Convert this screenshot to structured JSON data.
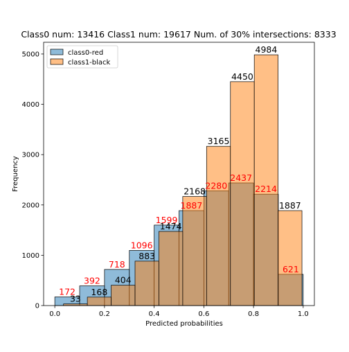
{
  "chart_data": {
    "type": "histogram",
    "title": "Class0 num: 13416 Class1 num: 19617 Num. of 30% intersections: 8333",
    "xlabel": "Predicted probabilities",
    "ylabel": "Frequency",
    "xlim": [
      -0.045,
      1.045
    ],
    "ylim": [
      0,
      5233
    ],
    "xticks": [
      "0.0",
      "0.2",
      "0.4",
      "0.6",
      "0.8",
      "1.0"
    ],
    "xtick_values": [
      0.0,
      0.2,
      0.4,
      0.6,
      0.8,
      1.0
    ],
    "yticks": [
      "0",
      "1000",
      "2000",
      "3000",
      "4000",
      "5000"
    ],
    "ytick_values": [
      0,
      1000,
      2000,
      3000,
      4000,
      5000
    ],
    "legend_position": "upper-left",
    "grid": false,
    "series": [
      {
        "name": "class0-red",
        "color": "#1f77b4",
        "label_color": "#ff0000",
        "bins": [
          [
            0.0,
            0.1,
            172
          ],
          [
            0.1,
            0.2,
            392
          ],
          [
            0.2,
            0.3,
            718
          ],
          [
            0.3,
            0.4,
            1096
          ],
          [
            0.4,
            0.5,
            1599
          ],
          [
            0.5,
            0.6,
            1887
          ],
          [
            0.6,
            0.7,
            2280
          ],
          [
            0.7,
            0.8,
            2437
          ],
          [
            0.8,
            0.9,
            2214
          ],
          [
            0.9,
            1.0,
            621
          ]
        ]
      },
      {
        "name": "class1-black",
        "color": "#ff7f0e",
        "label_color": "#000000",
        "bins": [
          [
            0.035,
            0.131,
            33
          ],
          [
            0.131,
            0.227,
            168
          ],
          [
            0.227,
            0.323,
            404
          ],
          [
            0.323,
            0.419,
            883
          ],
          [
            0.419,
            0.515,
            1474
          ],
          [
            0.515,
            0.611,
            2168
          ],
          [
            0.611,
            0.707,
            3165
          ],
          [
            0.707,
            0.803,
            4450
          ],
          [
            0.803,
            0.899,
            4984
          ],
          [
            0.899,
            0.995,
            1887
          ]
        ]
      }
    ]
  }
}
